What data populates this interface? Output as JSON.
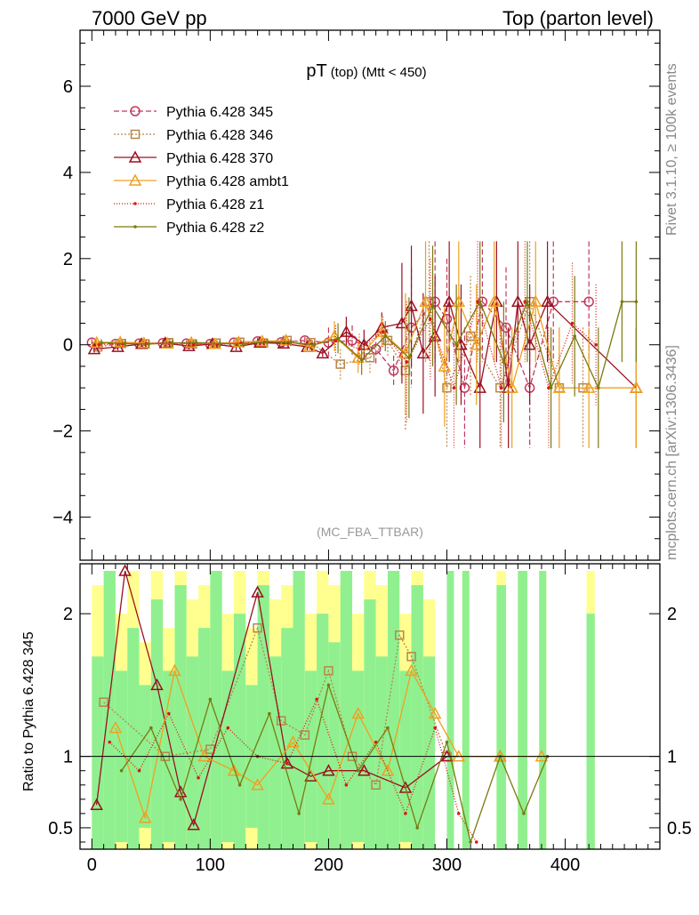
{
  "header": {
    "left": "7000 GeV pp",
    "right": "Top (parton level)"
  },
  "side_labels": {
    "rivet": "Rivet 3.1.10, ≥ 100k events",
    "mcplots": "mcplots.cern.ch [arXiv:1306.3436]"
  },
  "chart_data": [
    {
      "type": "line",
      "title_main": "pT",
      "title_sub": "(top) (Mtt < 450)",
      "watermark": "(MC_FBA_TTBAR)",
      "xlim": [
        -10,
        480
      ],
      "ylim": [
        -5,
        7.3
      ],
      "yticks": [
        -4,
        -2,
        0,
        2,
        4,
        6
      ],
      "yticklabels": [
        "−4",
        "−2",
        "0",
        "2",
        "4",
        "6"
      ],
      "legend_position": "top-left",
      "series": [
        {
          "name": "Pythia 6.428 345",
          "color": "#c0395e",
          "marker": "circle",
          "dash": "6,3",
          "x": [
            0,
            20,
            40,
            60,
            80,
            100,
            120,
            140,
            160,
            180,
            200,
            220,
            240,
            255,
            270,
            290,
            300,
            315,
            330,
            350,
            370,
            390,
            420
          ],
          "y": [
            0.05,
            0.02,
            0.03,
            0.04,
            0.03,
            0.02,
            0.05,
            0.08,
            0.06,
            0.1,
            0.05,
            0.1,
            -0.1,
            -0.6,
            0.4,
            1.0,
            0.6,
            -1.0,
            1.0,
            0.4,
            -1.0,
            1.0,
            1.0
          ]
        },
        {
          "name": "Pythia 6.428 346",
          "color": "#b8864a",
          "marker": "square",
          "dash": "2,2",
          "x": [
            5,
            25,
            45,
            65,
            85,
            105,
            125,
            145,
            165,
            185,
            210,
            235,
            250,
            265,
            285,
            300,
            320,
            345,
            370,
            395,
            415
          ],
          "y": [
            -0.05,
            0.03,
            0.02,
            0.05,
            0.02,
            0.04,
            0.06,
            0.04,
            0.1,
            0.05,
            -0.45,
            -0.3,
            0.1,
            -0.6,
            1.0,
            -1.0,
            0.2,
            -1.0,
            1.0,
            -1.0,
            -1.0
          ]
        },
        {
          "name": "Pythia 6.428 370",
          "color": "#9b1020",
          "marker": "triangle",
          "dash": "",
          "x": [
            2,
            22,
            42,
            62,
            82,
            102,
            122,
            142,
            162,
            182,
            195,
            215,
            230,
            245,
            262,
            270,
            280,
            290,
            302,
            312,
            328,
            342,
            352,
            360,
            370,
            385,
            460
          ],
          "y": [
            -0.1,
            -0.05,
            0.02,
            0.04,
            -0.03,
            0.02,
            -0.05,
            0.05,
            0.03,
            -0.05,
            -0.2,
            0.3,
            0.0,
            0.4,
            0.5,
            0.9,
            -0.2,
            0.2,
            1.0,
            0.0,
            -1.0,
            1.0,
            -1.0,
            1.0,
            0.0,
            1.0,
            -1.0
          ]
        },
        {
          "name": "Pythia 6.428 ambt1",
          "color": "#f0a020",
          "marker": "triangle",
          "dash": "",
          "x": [
            4,
            24,
            44,
            64,
            84,
            104,
            124,
            144,
            164,
            184,
            205,
            225,
            245,
            265,
            282,
            298,
            310,
            325,
            340,
            355,
            375,
            395,
            420,
            460
          ],
          "y": [
            0.05,
            0.06,
            0.04,
            0.03,
            0.05,
            0.02,
            0.06,
            0.08,
            0.1,
            -0.05,
            0.2,
            -0.3,
            0.3,
            -0.2,
            1.0,
            -0.5,
            1.0,
            0.0,
            1.0,
            -1.0,
            1.0,
            -1.0,
            -1.0,
            -1.0
          ]
        },
        {
          "name": "Pythia 6.428 z1",
          "color": "#d81a10",
          "marker": "dot",
          "dash": "1,2",
          "x": [
            6,
            26,
            46,
            66,
            86,
            106,
            126,
            146,
            166,
            186,
            206,
            226,
            246,
            266,
            286,
            306,
            326,
            346,
            366,
            386,
            406,
            426
          ],
          "y": [
            0.0,
            0.02,
            0.03,
            0.05,
            0.02,
            0.01,
            0.04,
            0.06,
            0.05,
            0.02,
            0.1,
            -0.1,
            0.3,
            -0.4,
            0.6,
            -1.0,
            1.0,
            -1.0,
            1.0,
            -1.0,
            0.5,
            0.0
          ]
        },
        {
          "name": "Pythia 6.428 z2",
          "color": "#7a7a10",
          "marker": "dot",
          "dash": "",
          "x": [
            8,
            28,
            48,
            68,
            88,
            108,
            128,
            148,
            168,
            188,
            208,
            228,
            248,
            268,
            288,
            308,
            328,
            348,
            368,
            388,
            408,
            428,
            448,
            460
          ],
          "y": [
            0.05,
            0.03,
            0.02,
            0.04,
            0.05,
            0.03,
            0.02,
            0.07,
            0.05,
            0.0,
            0.15,
            -0.35,
            0.2,
            -0.3,
            0.9,
            0.0,
            1.0,
            -0.4,
            1.0,
            -1.0,
            0.2,
            -1.0,
            1.0,
            1.0
          ]
        }
      ]
    },
    {
      "type": "line",
      "ylabel": "Ratio to Pythia 6.428 345",
      "xlim": [
        -10,
        480
      ],
      "ylim": [
        0.35,
        2.35
      ],
      "xticks": [
        0,
        100,
        200,
        300,
        400
      ],
      "yticks": [
        0.5,
        1,
        2
      ],
      "reference_line": 1,
      "band_colors": {
        "one_sigma": "#90f090",
        "two_sigma": "#ffff90"
      },
      "bands": [
        {
          "x": [
            0,
            10
          ],
          "one_sigma": 1.7,
          "two_sigma": 2.2
        },
        {
          "x": [
            10,
            20
          ],
          "one_sigma": 2.3,
          "two_sigma": 2.3
        },
        {
          "x": [
            20,
            30
          ],
          "one_sigma": 1.6,
          "two_sigma": 2.0
        },
        {
          "x": [
            30,
            40
          ],
          "one_sigma": 1.9,
          "two_sigma": 2.3
        },
        {
          "x": [
            40,
            50
          ],
          "one_sigma": 1.5,
          "two_sigma": 1.8
        },
        {
          "x": [
            50,
            60
          ],
          "one_sigma": 2.1,
          "two_sigma": 2.3
        },
        {
          "x": [
            60,
            70
          ],
          "one_sigma": 1.6,
          "two_sigma": 1.9
        },
        {
          "x": [
            70,
            80
          ],
          "one_sigma": 2.2,
          "two_sigma": 2.3
        },
        {
          "x": [
            80,
            90
          ],
          "one_sigma": 1.7,
          "two_sigma": 2.1
        },
        {
          "x": [
            90,
            100
          ],
          "one_sigma": 1.9,
          "two_sigma": 2.2
        },
        {
          "x": [
            100,
            110
          ],
          "one_sigma": 2.3,
          "two_sigma": 2.3
        },
        {
          "x": [
            110,
            120
          ],
          "one_sigma": 1.6,
          "two_sigma": 2.0
        },
        {
          "x": [
            120,
            130
          ],
          "one_sigma": 2.0,
          "two_sigma": 2.3
        },
        {
          "x": [
            130,
            140
          ],
          "one_sigma": 1.5,
          "two_sigma": 1.9
        },
        {
          "x": [
            140,
            150
          ],
          "one_sigma": 2.2,
          "two_sigma": 2.3
        },
        {
          "x": [
            150,
            160
          ],
          "one_sigma": 1.7,
          "two_sigma": 2.1
        },
        {
          "x": [
            160,
            170
          ],
          "one_sigma": 1.9,
          "two_sigma": 2.2
        },
        {
          "x": [
            170,
            180
          ],
          "one_sigma": 2.3,
          "two_sigma": 2.3
        },
        {
          "x": [
            180,
            190
          ],
          "one_sigma": 1.6,
          "two_sigma": 2.0
        },
        {
          "x": [
            190,
            200
          ],
          "one_sigma": 2.0,
          "two_sigma": 2.3
        },
        {
          "x": [
            200,
            210
          ],
          "one_sigma": 1.8,
          "two_sigma": 2.2
        },
        {
          "x": [
            210,
            220
          ],
          "one_sigma": 2.3,
          "two_sigma": 2.3
        },
        {
          "x": [
            220,
            230
          ],
          "one_sigma": 1.6,
          "two_sigma": 2.0
        },
        {
          "x": [
            230,
            240
          ],
          "one_sigma": 2.1,
          "two_sigma": 2.3
        },
        {
          "x": [
            240,
            250
          ],
          "one_sigma": 1.7,
          "two_sigma": 2.2
        },
        {
          "x": [
            250,
            260
          ],
          "one_sigma": 2.3,
          "two_sigma": 2.3
        },
        {
          "x": [
            260,
            270
          ],
          "one_sigma": 1.6,
          "two_sigma": 2.0
        },
        {
          "x": [
            270,
            280
          ],
          "one_sigma": 2.2,
          "two_sigma": 2.3
        },
        {
          "x": [
            280,
            290
          ],
          "one_sigma": 1.7,
          "two_sigma": 2.1
        },
        {
          "x": [
            300,
            306
          ],
          "one_sigma": 2.3,
          "two_sigma": 2.3
        },
        {
          "x": [
            313,
            319
          ],
          "one_sigma": 2.3,
          "two_sigma": 2.3
        },
        {
          "x": [
            342,
            350
          ],
          "one_sigma": 2.2,
          "two_sigma": 2.3
        },
        {
          "x": [
            360,
            368
          ],
          "one_sigma": 2.3,
          "two_sigma": 2.3
        },
        {
          "x": [
            378,
            384
          ],
          "one_sigma": 2.3,
          "two_sigma": 2.3
        },
        {
          "x": [
            418,
            425
          ],
          "one_sigma": 2.0,
          "two_sigma": 2.3
        }
      ],
      "series": [
        {
          "name": "Pythia 6.428 346",
          "color": "#b8864a",
          "marker": "square",
          "dash": "2,2",
          "x": [
            10,
            62,
            100,
            140,
            160,
            180,
            200,
            220,
            240,
            260,
            270,
            300
          ],
          "y": [
            1.38,
            1.0,
            1.05,
            1.9,
            1.25,
            1.15,
            1.6,
            1.0,
            0.8,
            1.85,
            1.7,
            1.0
          ]
        },
        {
          "name": "Pythia 6.428 370",
          "color": "#9b1020",
          "marker": "triangle",
          "dash": "",
          "x": [
            4,
            28,
            55,
            75,
            86,
            140,
            165,
            185,
            200,
            230,
            265,
            300,
            345
          ],
          "y": [
            0.66,
            2.3,
            1.5,
            0.75,
            0.52,
            2.15,
            0.95,
            0.86,
            0.9,
            0.9,
            0.78,
            1.0,
            1.0
          ]
        },
        {
          "name": "Pythia 6.428 ambt1",
          "color": "#f0a020",
          "marker": "triangle",
          "dash": "",
          "x": [
            20,
            45,
            70,
            95,
            120,
            140,
            170,
            200,
            225,
            250,
            270,
            290,
            310,
            345,
            380
          ],
          "y": [
            1.2,
            0.57,
            1.6,
            1.0,
            0.9,
            0.8,
            1.1,
            0.7,
            1.3,
            0.9,
            1.6,
            1.3,
            1.0,
            1.0,
            1.0
          ]
        },
        {
          "name": "Pythia 6.428 z1",
          "color": "#d81a10",
          "marker": "dot",
          "dash": "1,2",
          "x": [
            15,
            40,
            65,
            90,
            115,
            140,
            165,
            190,
            215,
            240,
            265,
            290,
            310,
            325
          ],
          "y": [
            1.1,
            0.9,
            1.3,
            0.85,
            1.2,
            1.0,
            0.95,
            1.4,
            0.8,
            1.1,
            0.6,
            1.2,
            0.6,
            0.4
          ]
        },
        {
          "name": "Pythia 6.428 z2",
          "color": "#7a7a10",
          "marker": "dot",
          "dash": "",
          "x": [
            25,
            50,
            75,
            100,
            125,
            150,
            175,
            200,
            225,
            250,
            275,
            300,
            320,
            345,
            365,
            385
          ],
          "y": [
            0.9,
            1.2,
            0.7,
            1.4,
            0.8,
            1.3,
            0.6,
            1.5,
            0.9,
            1.2,
            0.5,
            1.1,
            0.4,
            1.0,
            0.6,
            1.0
          ]
        }
      ]
    }
  ]
}
